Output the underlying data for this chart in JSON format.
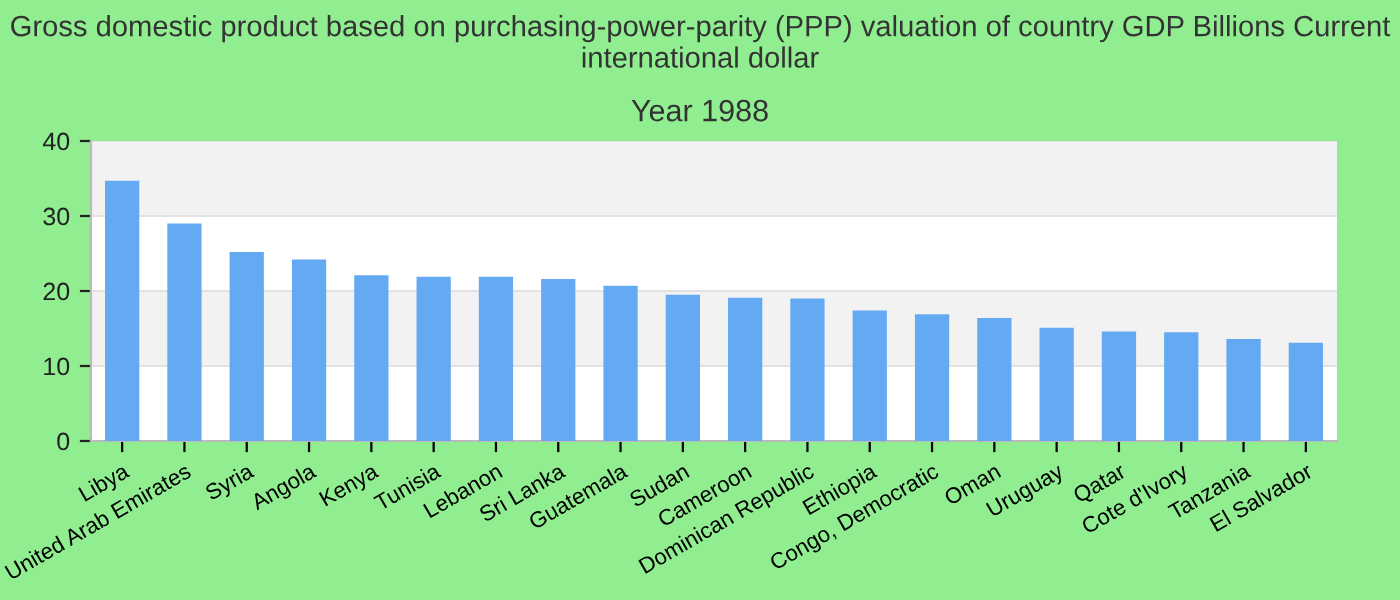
{
  "chart_data": {
    "type": "bar",
    "title": "Gross domestic product based on purchasing-power-parity (PPP) valuation of country GDP Billions Current international dollar",
    "subtitle": "Year 1988",
    "categories": [
      "Libya",
      "United Arab Emirates",
      "Syria",
      "Angola",
      "Kenya",
      "Tunisia",
      "Lebanon",
      "Sri Lanka",
      "Guatemala",
      "Sudan",
      "Cameroon",
      "Dominican Republic",
      "Ethiopia",
      "Congo, Democratic",
      "Oman",
      "Uruguay",
      "Qatar",
      "Cote d'Ivory",
      "Tanzania",
      "El Salvador"
    ],
    "values": [
      34.7,
      29.0,
      25.2,
      24.2,
      22.1,
      21.9,
      21.9,
      21.6,
      20.7,
      19.5,
      19.1,
      19.0,
      17.4,
      16.9,
      16.4,
      15.1,
      14.6,
      14.5,
      13.6,
      13.1
    ],
    "color": "#64aaf2",
    "ylim": [
      0,
      40
    ],
    "yticks": [
      0,
      10,
      20,
      30,
      40
    ],
    "grid": "y"
  }
}
